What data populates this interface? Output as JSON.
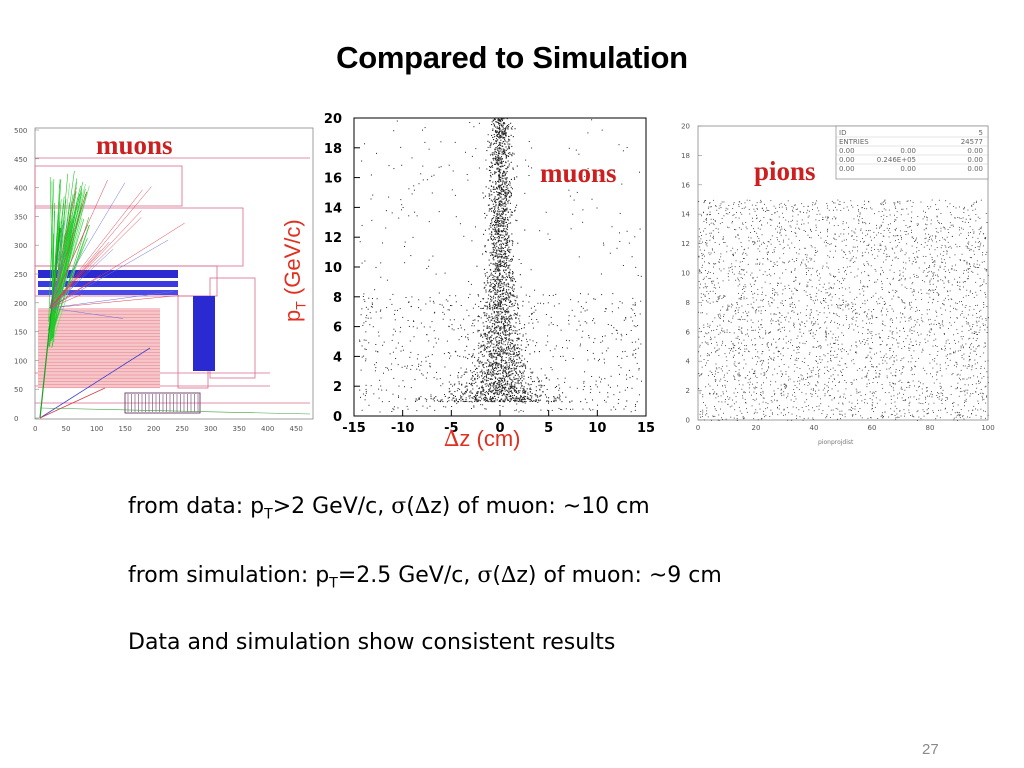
{
  "slide": {
    "title": "Compared to Simulation",
    "page_number": "27"
  },
  "event_display": {
    "label": "muons",
    "y_ticks": [
      "500",
      "450",
      "400",
      "350",
      "300",
      "250",
      "200",
      "150",
      "100",
      "50",
      "0"
    ],
    "x_ticks": [
      "0",
      "50",
      "100",
      "150",
      "200",
      "250",
      "300",
      "350",
      "400",
      "450"
    ]
  },
  "muon_plot": {
    "label": "muons",
    "y_axis_label_main": "p",
    "y_axis_label_sub": "T",
    "y_axis_label_rest": " (GeV/c)",
    "x_axis_label_symbol": "∆",
    "x_axis_label_rest": "z (cm)",
    "y_ticks": [
      "0",
      "2",
      "4",
      "6",
      "8",
      "10",
      "12",
      "14",
      "16",
      "18",
      "20"
    ],
    "x_ticks": [
      "-15",
      "-10",
      "-5",
      "0",
      "5",
      "10",
      "15"
    ]
  },
  "pion_plot": {
    "label": "pions",
    "y_ticks": [
      "0",
      "2",
      "4",
      "6",
      "8",
      "10",
      "12",
      "14",
      "16",
      "18",
      "20"
    ],
    "x_ticks": [
      "0",
      "20",
      "40",
      "60",
      "80",
      "100"
    ],
    "x_axis_label": "pionprojdist",
    "stats": [
      [
        "ID",
        "",
        "5"
      ],
      [
        "ENTRIES",
        "",
        "24577"
      ],
      [
        "0.00",
        "0.00",
        "0.00"
      ],
      [
        "0.00",
        "0.246E+05",
        "0.00"
      ],
      [
        "0.00",
        "0.00",
        "0.00"
      ]
    ]
  },
  "chart_data": [
    {
      "type": "scatter",
      "title": "",
      "xlabel": "∆z (cm)",
      "ylabel": "pT (GeV/c)",
      "xlim": [
        -15,
        15
      ],
      "ylim": [
        0,
        20
      ],
      "series": [
        {
          "name": "muons",
          "description_values": {
            "core_x_center": 0,
            "core_sigma_cm_approx": 9
          }
        }
      ]
    },
    {
      "type": "scatter",
      "title": "",
      "xlabel": "pionprojdist",
      "ylabel": "",
      "xlim": [
        0,
        100
      ],
      "ylim": [
        0,
        20
      ],
      "series": [
        {
          "name": "pions",
          "entries": 24577
        }
      ]
    }
  ],
  "text": {
    "line1": {
      "a": "from data: p",
      "sub": "T",
      "b": ">2 GeV/c, ",
      "sigma": "σ",
      "c": "(",
      "delta": "∆",
      "d": "z) of muon: ~10 cm"
    },
    "line2": {
      "a": "from simulation: p",
      "sub": "T",
      "b": "=2.5 GeV/c, ",
      "sigma": "σ",
      "c": "(",
      "delta": "∆",
      "d": "z) of muon: ~9 cm"
    },
    "line3": "Data and simulation show consistent results"
  },
  "colors": {
    "label_red": "#cc1f1f",
    "axis_red": "#e03020"
  }
}
